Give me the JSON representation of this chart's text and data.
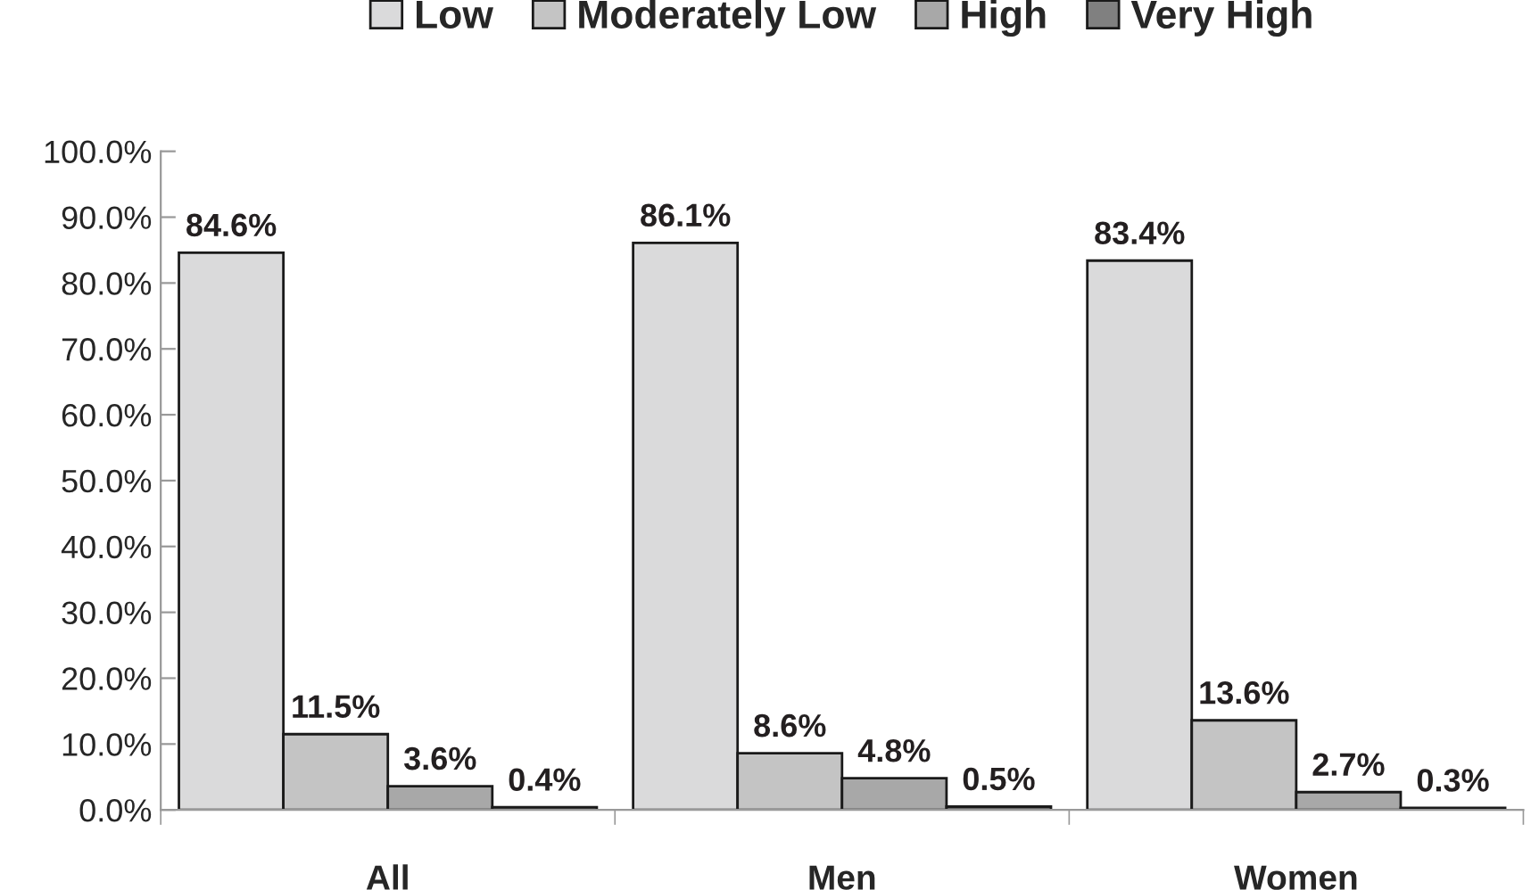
{
  "chart_data": {
    "type": "bar",
    "categories": [
      "All",
      "Men",
      "Women"
    ],
    "series": [
      {
        "name": "Low",
        "color": "#dadadb",
        "values": [
          84.6,
          86.1,
          83.4
        ],
        "value_labels": [
          "84.6%",
          "86.1%",
          "83.4%"
        ]
      },
      {
        "name": "Moderately Low",
        "color": "#c4c4c4",
        "values": [
          11.5,
          8.6,
          13.6
        ],
        "value_labels": [
          "11.5%",
          "8.6%",
          "13.6%"
        ]
      },
      {
        "name": "High",
        "color": "#a8a8a8",
        "values": [
          3.6,
          4.8,
          2.7
        ],
        "value_labels": [
          "3.6%",
          "4.8%",
          "2.7%"
        ]
      },
      {
        "name": "Very High",
        "color": "#808080",
        "values": [
          0.4,
          0.5,
          0.3
        ],
        "value_labels": [
          "0.4%",
          "0.5%",
          "0.3%"
        ]
      }
    ],
    "ylim": [
      0,
      100
    ],
    "yticks": [
      {
        "value": 0,
        "label": "0.0%"
      },
      {
        "value": 10,
        "label": "10.0%"
      },
      {
        "value": 20,
        "label": "20.0%"
      },
      {
        "value": 30,
        "label": "30.0%"
      },
      {
        "value": 40,
        "label": "40.0%"
      },
      {
        "value": 50,
        "label": "50.0%"
      },
      {
        "value": 60,
        "label": "60.0%"
      },
      {
        "value": 70,
        "label": "70.0%"
      },
      {
        "value": 80,
        "label": "80.0%"
      },
      {
        "value": 90,
        "label": "90.0%"
      },
      {
        "value": 100,
        "label": "100.0%"
      }
    ],
    "grid": false,
    "legend": "top"
  }
}
